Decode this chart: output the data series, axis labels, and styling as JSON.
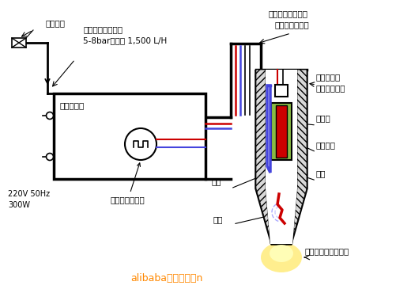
{
  "bg_color": "#ffffff",
  "line_color": "#000000",
  "red_color": "#cc0000",
  "blue_color": "#4444dd",
  "green_color": "#88bb44",
  "orange_color": "#ff8800",
  "yellow_color": "#ffee88",
  "labels": {
    "gas_supply": "气体供应",
    "dry_air_line1": "干燥无油压缩空气",
    "dry_air_line2": "5-8bar，最大 1,500 L/H",
    "gas_valve": "气体控制阀",
    "rf_generator": "高压射频发生器",
    "power_info1": "220V 50Hz",
    "power_info2": "300W",
    "gas_path_label": "气路",
    "arc_label": "电弧",
    "cable_label1": "气路和射频电源线",
    "cable_label2": "包含在柔性管里",
    "nozzle_label1": "大气等离子",
    "nozzle_label2": "喷头（负极）",
    "insulator_label": "绝缘体",
    "center_electrode": "中枢电极",
    "gas_flow_label": "气流",
    "plasma_zone": "有效等离子处理区域",
    "alibaba_text": "alibaba活性气流束n"
  }
}
